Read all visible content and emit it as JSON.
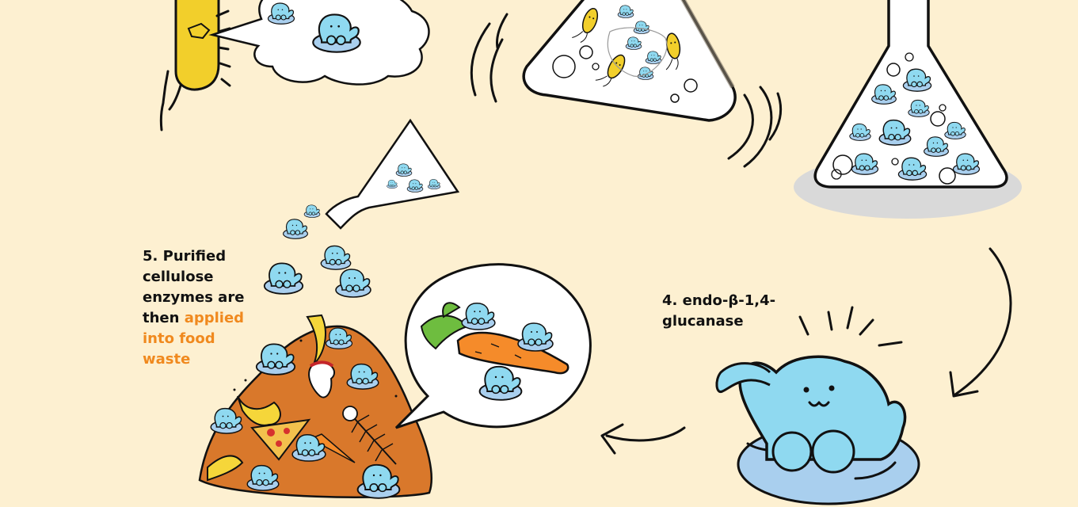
{
  "step5": {
    "line1": "5. Purified",
    "line2": "cellulose",
    "line3": "enzymes are",
    "line4_plain": "then ",
    "line4_accent": "applied",
    "line5_accent": "into food",
    "line6_accent": "waste"
  },
  "step4": {
    "line1": "4. endo-β-1,4-",
    "line2": "glucanase"
  },
  "colors": {
    "background": "#fdf0d1",
    "enzyme": "#8fd9f0",
    "enzyme_base": "#a9cfee",
    "bacterium": "#f2cf2b",
    "compost": "#d9782b",
    "carrot": "#f58b2a",
    "accent_text": "#f0891e"
  },
  "illustrations": [
    "bacterium-with-speech-cloud",
    "shaken-culture-flask",
    "enzyme-solution-flask",
    "pouring-flask",
    "food-waste-pile",
    "carrot-speech-bubble",
    "enzyme-mascot",
    "curved-arrow",
    "left-arrow"
  ]
}
